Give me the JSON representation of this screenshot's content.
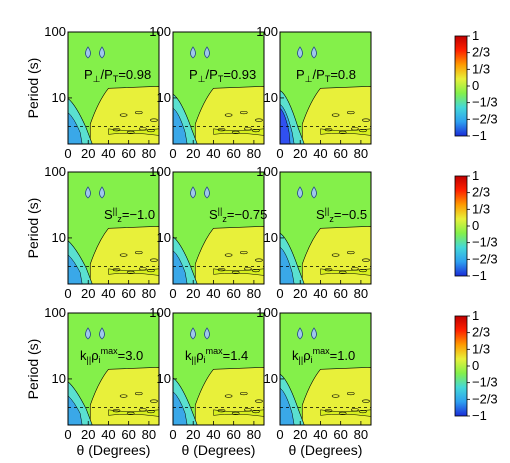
{
  "colors": {
    "background": "#84f04a",
    "high": "#e8f03a",
    "mid_high": "#d8f020",
    "low": "#5ae0d0",
    "lower": "#3aa8e8",
    "lowest": "#3050f0",
    "contour": "#000000",
    "teardrop_fill": "#9ec8ec",
    "teardrop_stroke": "#2a4a8a"
  },
  "colorbar": {
    "stops": [
      "#c00000",
      "#ff2000",
      "#ff9a00",
      "#e8f03a",
      "#84f04a",
      "#44d8d8",
      "#2ea0f0",
      "#1a2cd8"
    ],
    "ticks": [
      "1",
      "2/3",
      "1/3",
      "0",
      "−1/3",
      "−2/3",
      "−1"
    ]
  },
  "axes": {
    "xlabel": "θ (Degrees)",
    "ylabel": "Period (s)",
    "xticks": [
      "0",
      "20",
      "40",
      "60",
      "80"
    ],
    "yticks": [
      "100",
      "10"
    ]
  },
  "chart_data": [
    {
      "type": "heatmap",
      "row": 0,
      "col": 0,
      "xlim": [
        0,
        90
      ],
      "ylim": [
        2,
        100
      ],
      "yscale": "log",
      "ann_main": "P",
      "ann_sub1": "⊥",
      "ann_slash": "/P",
      "ann_sub2": "T",
      "ann_tail": "=0.98"
    },
    {
      "type": "heatmap",
      "row": 0,
      "col": 1,
      "xlim": [
        0,
        90
      ],
      "ylim": [
        2,
        100
      ],
      "yscale": "log",
      "ann_main": "P",
      "ann_sub1": "⊥",
      "ann_slash": "/P",
      "ann_sub2": "T",
      "ann_tail": "=0.93"
    },
    {
      "type": "heatmap",
      "row": 0,
      "col": 2,
      "xlim": [
        0,
        90
      ],
      "ylim": [
        2,
        100
      ],
      "yscale": "log",
      "ann_main": "P",
      "ann_sub1": "⊥",
      "ann_slash": "/P",
      "ann_sub2": "T",
      "ann_tail": "=0.8"
    },
    {
      "type": "heatmap",
      "row": 1,
      "col": 0,
      "xlim": [
        0,
        90
      ],
      "ylim": [
        2,
        100
      ],
      "yscale": "log",
      "ann_main": "S",
      "ann_sup": "||",
      "ann_sub1": "z",
      "ann_tail": "=−1.0"
    },
    {
      "type": "heatmap",
      "row": 1,
      "col": 1,
      "xlim": [
        0,
        90
      ],
      "ylim": [
        2,
        100
      ],
      "yscale": "log",
      "ann_main": "S",
      "ann_sup": "||",
      "ann_sub1": "z",
      "ann_tail": "=−0.75"
    },
    {
      "type": "heatmap",
      "row": 1,
      "col": 2,
      "xlim": [
        0,
        90
      ],
      "ylim": [
        2,
        100
      ],
      "yscale": "log",
      "ann_main": "S",
      "ann_sup": "||",
      "ann_sub1": "z",
      "ann_tail": "=−0.5"
    },
    {
      "type": "heatmap",
      "row": 2,
      "col": 0,
      "xlim": [
        0,
        90
      ],
      "ylim": [
        2,
        100
      ],
      "yscale": "log",
      "ann_main": "k",
      "ann_sub1": "||",
      "ann_rho": "ρ",
      "ann_sub2": "i",
      "ann_sup": "max",
      "ann_tail": "=3.0"
    },
    {
      "type": "heatmap",
      "row": 2,
      "col": 1,
      "xlim": [
        0,
        90
      ],
      "ylim": [
        2,
        100
      ],
      "yscale": "log",
      "ann_main": "k",
      "ann_sub1": "||",
      "ann_rho": "ρ",
      "ann_sub2": "i",
      "ann_sup": "max",
      "ann_tail": "=1.4"
    },
    {
      "type": "heatmap",
      "row": 2,
      "col": 2,
      "xlim": [
        0,
        90
      ],
      "ylim": [
        2,
        100
      ],
      "yscale": "log",
      "ann_main": "k",
      "ann_sub1": "||",
      "ann_rho": "ρ",
      "ann_sub2": "i",
      "ann_sup": "max",
      "ann_tail": "=1.0"
    }
  ]
}
